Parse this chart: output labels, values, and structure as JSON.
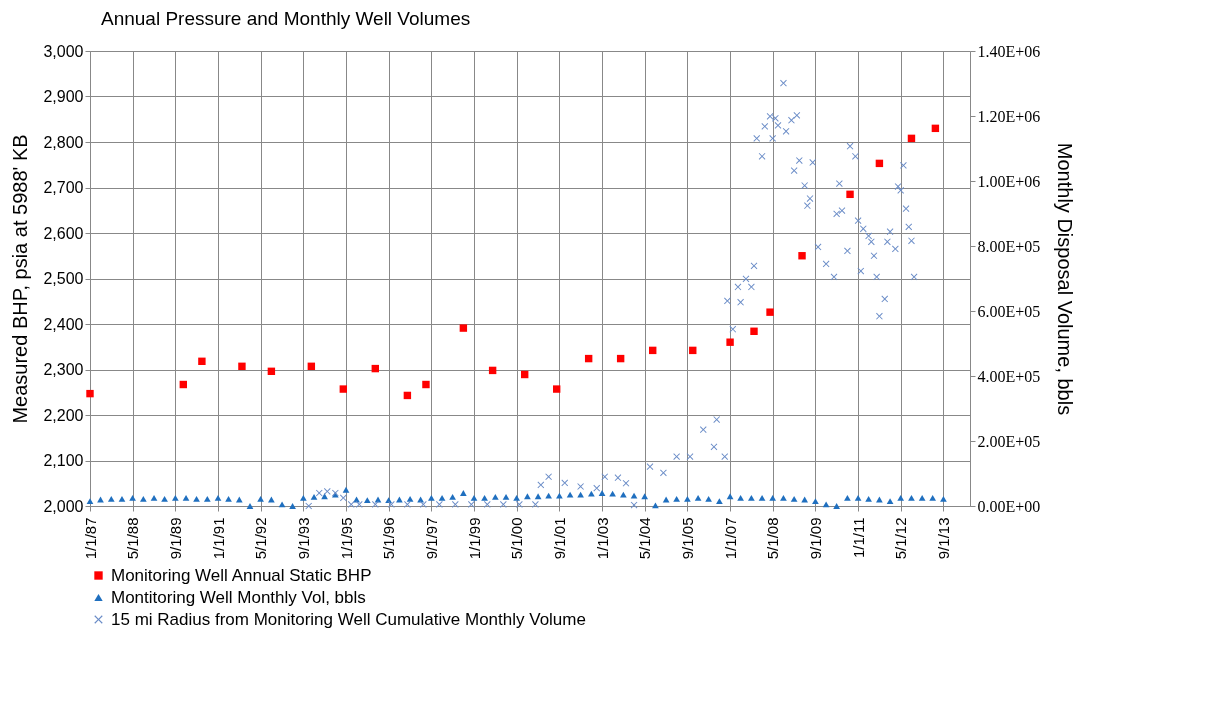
{
  "chart_data": {
    "type": "scatter",
    "title": "Annual Pressure and Monthly Well Volumes",
    "ylabel": "Measured BHP, psia at 5988' KB",
    "y2label": "Monthly Disposal Volume, bbls",
    "xlim": [
      "1987-01-01",
      "2014-07-01"
    ],
    "xticks": [
      {
        "value": "1987-01-01",
        "label": "1/1/87"
      },
      {
        "value": "1988-05-01",
        "label": "5/1/88"
      },
      {
        "value": "1989-09-01",
        "label": "9/1/89"
      },
      {
        "value": "1991-01-01",
        "label": "1/1/91"
      },
      {
        "value": "1992-05-01",
        "label": "5/1/92"
      },
      {
        "value": "1993-09-01",
        "label": "9/1/93"
      },
      {
        "value": "1995-01-01",
        "label": "1/1/95"
      },
      {
        "value": "1996-05-01",
        "label": "5/1/96"
      },
      {
        "value": "1997-09-01",
        "label": "9/1/97"
      },
      {
        "value": "1999-01-01",
        "label": "1/1/99"
      },
      {
        "value": "2000-05-01",
        "label": "5/1/00"
      },
      {
        "value": "2001-09-01",
        "label": "9/1/01"
      },
      {
        "value": "2003-01-01",
        "label": "1/1/03"
      },
      {
        "value": "2004-05-01",
        "label": "5/1/04"
      },
      {
        "value": "2005-09-01",
        "label": "9/1/05"
      },
      {
        "value": "2007-01-01",
        "label": "1/1/07"
      },
      {
        "value": "2008-05-01",
        "label": "5/1/08"
      },
      {
        "value": "2009-09-01",
        "label": "9/1/09"
      },
      {
        "value": "2011-01-01",
        "label": "1/1/11"
      },
      {
        "value": "2012-05-01",
        "label": "5/1/12"
      },
      {
        "value": "2013-09-01",
        "label": "9/1/13"
      }
    ],
    "ylim": [
      2000,
      3000
    ],
    "yticks": [
      {
        "value": 2000,
        "label": "2,000"
      },
      {
        "value": 2100,
        "label": "2,100"
      },
      {
        "value": 2200,
        "label": "2,200"
      },
      {
        "value": 2300,
        "label": "2,300"
      },
      {
        "value": 2400,
        "label": "2,400"
      },
      {
        "value": 2500,
        "label": "2,500"
      },
      {
        "value": 2600,
        "label": "2,600"
      },
      {
        "value": 2700,
        "label": "2,700"
      },
      {
        "value": 2800,
        "label": "2,800"
      },
      {
        "value": 2900,
        "label": "2,900"
      },
      {
        "value": 3000,
        "label": "3,000"
      }
    ],
    "y2lim": [
      0,
      1400000
    ],
    "y2ticks": [
      {
        "value": 0,
        "label": "0.00E+00"
      },
      {
        "value": 200000,
        "label": "2.00E+05"
      },
      {
        "value": 400000,
        "label": "4.00E+05"
      },
      {
        "value": 600000,
        "label": "6.00E+05"
      },
      {
        "value": 800000,
        "label": "8.00E+05"
      },
      {
        "value": 1000000,
        "label": "1.00E+06"
      },
      {
        "value": 1200000,
        "label": "1.20E+06"
      },
      {
        "value": 1400000,
        "label": "1.40E+06"
      }
    ],
    "grid": true,
    "legend": "bottom",
    "series": [
      {
        "name": "Monitoring Well Annual Static BHP",
        "color": "#ff0000",
        "marker": "square",
        "axis": "y",
        "x": [
          "1987-01",
          "1989-12",
          "1990-07",
          "1991-10",
          "1992-09",
          "1993-12",
          "1994-12",
          "1995-12",
          "1996-12",
          "1997-07",
          "1998-09",
          "1999-08",
          "2000-08",
          "2001-08",
          "2002-08",
          "2003-08",
          "2004-08",
          "2005-11",
          "2007-01",
          "2007-10",
          "2008-04",
          "2009-04",
          "2010-10",
          "2011-09",
          "2012-09",
          "2013-06"
        ],
        "values": [
          2247,
          2267,
          2318,
          2307,
          2296,
          2307,
          2257,
          2302,
          2243,
          2267,
          2391,
          2298,
          2289,
          2257,
          2324,
          2324,
          2342,
          2342,
          2360,
          2384,
          2426,
          2550,
          2685,
          2753,
          2808,
          2830
        ]
      },
      {
        "name": "Montitoring Well Monthly Vol, bbls",
        "color": "#1f6fbf",
        "marker": "triangle",
        "axis": "y2",
        "x": [
          "1987-01",
          "1987-05",
          "1987-09",
          "1988-01",
          "1988-05",
          "1988-09",
          "1989-01",
          "1989-05",
          "1989-09",
          "1990-01",
          "1990-05",
          "1990-09",
          "1991-01",
          "1991-05",
          "1991-09",
          "1992-01",
          "1992-05",
          "1992-09",
          "1993-01",
          "1993-05",
          "1993-09",
          "1994-01",
          "1994-05",
          "1994-09",
          "1995-01",
          "1995-05",
          "1995-09",
          "1996-01",
          "1996-05",
          "1996-09",
          "1997-01",
          "1997-05",
          "1997-09",
          "1998-01",
          "1998-05",
          "1998-09",
          "1999-01",
          "1999-05",
          "1999-09",
          "2000-01",
          "2000-05",
          "2000-09",
          "2001-01",
          "2001-05",
          "2001-09",
          "2002-01",
          "2002-05",
          "2002-09",
          "2003-01",
          "2003-05",
          "2003-09",
          "2004-01",
          "2004-05",
          "2004-09",
          "2005-01",
          "2005-05",
          "2005-09",
          "2006-01",
          "2006-05",
          "2006-09",
          "2007-01",
          "2007-05",
          "2007-09",
          "2008-01",
          "2008-05",
          "2008-09",
          "2009-01",
          "2009-05",
          "2009-09",
          "2010-01",
          "2010-05",
          "2010-09",
          "2011-01",
          "2011-05",
          "2011-09",
          "2012-01",
          "2012-05",
          "2012-09",
          "2013-01",
          "2013-05",
          "2013-09"
        ],
        "values": [
          15000,
          20000,
          22000,
          22000,
          25000,
          22000,
          25000,
          22000,
          25000,
          25000,
          22000,
          22000,
          25000,
          22000,
          20000,
          0,
          22000,
          20000,
          5000,
          0,
          25000,
          28000,
          30000,
          35000,
          50000,
          20000,
          18000,
          20000,
          18000,
          20000,
          22000,
          20000,
          25000,
          25000,
          28000,
          40000,
          25000,
          25000,
          28000,
          28000,
          25000,
          30000,
          30000,
          32000,
          32000,
          35000,
          35000,
          38000,
          40000,
          38000,
          35000,
          32000,
          30000,
          2000,
          20000,
          22000,
          22000,
          25000,
          22000,
          15000,
          30000,
          25000,
          25000,
          25000,
          25000,
          25000,
          22000,
          20000,
          15000,
          5000,
          0,
          25000,
          25000,
          22000,
          20000,
          15000,
          25000,
          25000,
          25000,
          25000,
          22000
        ]
      },
      {
        "name": "15 mi Radius from Monitoring Well Cumulative Monthly Volume",
        "color": "#6a8cc7",
        "marker": "cross",
        "axis": "y2",
        "x": [
          "1993-11",
          "1994-03",
          "1994-06",
          "1994-09",
          "1994-12",
          "1995-03",
          "1995-06",
          "1995-12",
          "1996-06",
          "1996-12",
          "1997-06",
          "1997-12",
          "1998-06",
          "1998-12",
          "1999-06",
          "1999-12",
          "2000-06",
          "2000-12",
          "2001-02",
          "2001-05",
          "2001-11",
          "2002-05",
          "2002-11",
          "2003-02",
          "2003-07",
          "2003-10",
          "2004-01",
          "2004-07",
          "2004-12",
          "2005-05",
          "2005-10",
          "2006-03",
          "2006-07",
          "2006-08",
          "2006-11",
          "2006-12",
          "2007-02",
          "2007-04",
          "2007-05",
          "2007-07",
          "2007-09",
          "2007-10",
          "2007-11",
          "2008-01",
          "2008-02",
          "2008-04",
          "2008-05",
          "2008-06",
          "2008-07",
          "2008-09",
          "2008-10",
          "2008-12",
          "2009-01",
          "2009-02",
          "2009-03",
          "2009-05",
          "2009-06",
          "2009-07",
          "2009-08",
          "2009-10",
          "2010-01",
          "2010-04",
          "2010-05",
          "2010-06",
          "2010-07",
          "2010-09",
          "2010-10",
          "2010-12",
          "2011-01",
          "2011-02",
          "2011-03",
          "2011-05",
          "2011-06",
          "2011-07",
          "2011-08",
          "2011-09",
          "2011-11",
          "2011-12",
          "2012-01",
          "2012-03",
          "2012-04",
          "2012-05",
          "2012-06",
          "2012-07",
          "2012-08",
          "2012-09",
          "2012-10"
        ],
        "values": [
          0,
          40000,
          45000,
          40000,
          25000,
          5000,
          5000,
          5000,
          5000,
          5000,
          5000,
          5000,
          5000,
          5000,
          5000,
          5000,
          5000,
          5000,
          65000,
          90000,
          71000,
          60000,
          55000,
          90000,
          87000,
          70000,
          3000,
          121000,
          102000,
          152000,
          152000,
          235000,
          182000,
          266000,
          152000,
          631000,
          544000,
          674000,
          627000,
          699000,
          674000,
          739000,
          1131000,
          1076000,
          1168000,
          1199000,
          1131000,
          1193000,
          1171000,
          1301000,
          1153000,
          1187000,
          1032000,
          1202000,
          1063000,
          986000,
          924000,
          946000,
          1057000,
          797000,
          745000,
          705000,
          899000,
          992000,
          909000,
          785000,
          1107000,
          1076000,
          878000,
          723000,
          853000,
          831000,
          813000,
          770000,
          705000,
          584000,
          637000,
          813000,
          844000,
          791000,
          983000,
          971000,
          1048000,
          915000,
          859000,
          816000,
          705000
        ]
      }
    ]
  }
}
